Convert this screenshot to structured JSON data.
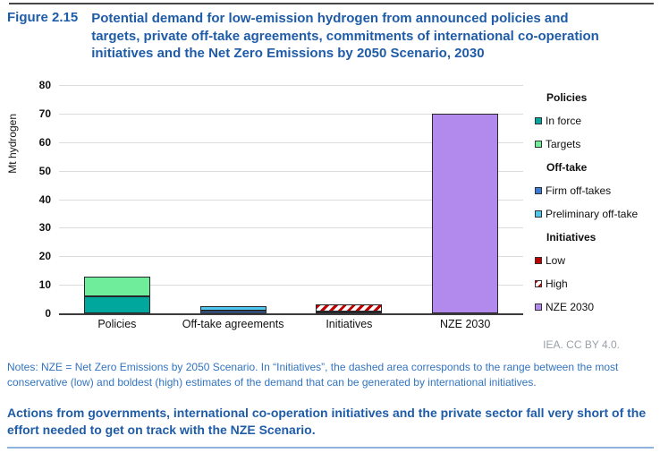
{
  "figure": {
    "label": "Figure 2.15",
    "title": "Potential demand for low-emission hydrogen from announced policies and targets, private off-take agreements, commitments of international co-operation initiatives and the Net Zero Emissions by 2050 Scenario, 2030"
  },
  "chart_data": {
    "type": "bar",
    "stacked": true,
    "title": "",
    "xlabel": "",
    "ylabel": "Mt hydrogen",
    "ylim": [
      0,
      80
    ],
    "ytick_step": 10,
    "grid": "horizontal",
    "legend_position": "right",
    "categories": [
      "Policies",
      "Off-take agreements",
      "Initiatives",
      "NZE 2030"
    ],
    "stacks": [
      {
        "category": "Policies",
        "segments": [
          {
            "name": "In force",
            "value": 6,
            "color": "#00a79d"
          },
          {
            "name": "Targets",
            "value": 7,
            "color": "#6fed9b"
          }
        ]
      },
      {
        "category": "Off-take agreements",
        "segments": [
          {
            "name": "Firm off-takes",
            "value": 1,
            "color": "#3b7bd4"
          },
          {
            "name": "Preliminary off-take",
            "value": 1.5,
            "color": "#4ec7ee"
          }
        ]
      },
      {
        "category": "Initiatives",
        "segments": [
          {
            "name": "Low",
            "value": 0.5,
            "color": "#c00000"
          },
          {
            "name": "High",
            "value": 2.5,
            "color": "#c00000",
            "pattern": "hatch"
          }
        ]
      },
      {
        "category": "NZE 2030",
        "segments": [
          {
            "name": "NZE 2030",
            "value": 70,
            "color": "#b28aee"
          }
        ]
      }
    ],
    "initiatives_range": {
      "low": 0.5,
      "high": 3
    }
  },
  "legend": {
    "rows": [
      {
        "type": "header",
        "text": "Policies"
      },
      {
        "type": "item",
        "label": "In force",
        "color": "#00a79d"
      },
      {
        "type": "item",
        "label": "Targets",
        "color": "#6fed9b"
      },
      {
        "type": "header",
        "text": "Off-take"
      },
      {
        "type": "item",
        "label": "Firm off-takes",
        "color": "#3b7bd4"
      },
      {
        "type": "item",
        "label": "Preliminary off-take",
        "color": "#4ec7ee"
      },
      {
        "type": "header",
        "text": "Initiatives"
      },
      {
        "type": "item",
        "label": "Low",
        "color": "#c00000"
      },
      {
        "type": "item",
        "label": "High",
        "color": "#ffffff",
        "pattern": "hatch"
      },
      {
        "type": "item",
        "label": "NZE 2030",
        "color": "#b28aee"
      }
    ]
  },
  "attribution": "IEA. CC BY 4.0.",
  "notes": "Notes: NZE = Net Zero Emissions by 2050 Scenario. In “Initiatives”, the dashed area corresponds to the range between the most conservative (low) and boldest (high) estimates of the demand that can be generated by international initiatives.",
  "takeaway": "Actions from governments, international co-operation initiatives and the private sector fall very short of the effort needed to get on track with the NZE Scenario.",
  "colors": {
    "title_blue": "#1f5ca8",
    "notes_blue": "#3374bf",
    "attribution_gray": "#9aa0a6",
    "gridline": "#dcdcdc",
    "axis": "#3c3c3c"
  }
}
